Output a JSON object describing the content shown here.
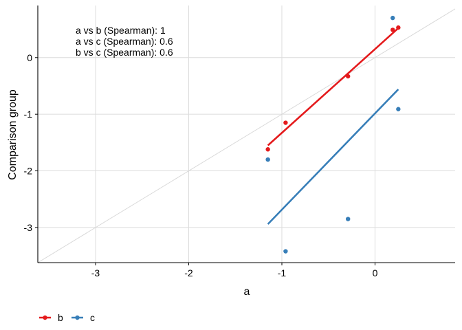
{
  "chart_data": {
    "type": "scatter",
    "xlabel": "a",
    "ylabel": "Comparison group",
    "xlim": [
      -3.62,
      0.86
    ],
    "ylim": [
      -3.62,
      0.92
    ],
    "x_ticks": [
      -3,
      -2,
      -1,
      0
    ],
    "y_ticks": [
      0,
      -1,
      -2,
      -3
    ],
    "x_tick_labels": [
      "-3",
      "-2",
      "-1",
      "0"
    ],
    "y_tick_labels": [
      "0",
      "-1",
      "-2",
      "-3"
    ],
    "grid": true,
    "legend_position": "bottom-left",
    "identity_line": {
      "color": "#d9d9d9"
    },
    "annotations": [
      "a vs b (Spearman): 1",
      "a vs c (Spearman): 0.6",
      "b vs c (Spearman): 0.6"
    ],
    "series": [
      {
        "name": "b",
        "color": "#e41a1c",
        "x": [
          -1.15,
          -0.96,
          -0.29,
          0.19,
          0.25
        ],
        "y": [
          -1.62,
          -1.15,
          -0.33,
          0.49,
          0.53
        ],
        "fit": {
          "x": [
            -1.15,
            0.25
          ],
          "y": [
            -1.55,
            0.52
          ]
        }
      },
      {
        "name": "c",
        "color": "#377eb8",
        "x": [
          -1.15,
          -0.96,
          -0.29,
          0.19,
          0.25
        ],
        "y": [
          -1.8,
          -3.42,
          -2.85,
          0.7,
          -0.91
        ],
        "fit": {
          "x": [
            -1.15,
            0.25
          ],
          "y": [
            -2.94,
            -0.56
          ]
        }
      }
    ]
  }
}
